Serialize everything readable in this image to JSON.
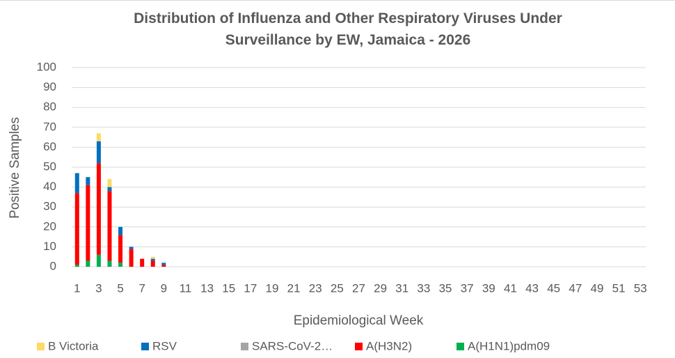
{
  "chart_data": {
    "type": "stacked_bar",
    "title": "Distribution of Influenza and Other Respiratory Viruses Under Surveillance by EW, Jamaica - 2026",
    "x_label": "Epidemiological Week",
    "y_label": "Positive Samples",
    "categories": [
      "1",
      null,
      "3",
      null,
      "5",
      null,
      "7",
      null,
      "9",
      null,
      "11",
      null,
      "13",
      null,
      "15",
      null,
      "17",
      null,
      "19",
      null,
      "21",
      null,
      "23",
      null,
      "25",
      null,
      "27",
      null,
      "29",
      null,
      "31",
      null,
      "33",
      null,
      "35",
      null,
      "37",
      null,
      "39",
      null,
      "41",
      null,
      "43",
      null,
      "45",
      null,
      "47",
      null,
      "49",
      null,
      "51",
      null,
      "53"
    ],
    "series": [
      {
        "name": "B Victoria",
        "color": "#ffd966",
        "values": [
          0,
          0,
          4,
          4,
          0,
          0,
          0,
          1,
          0,
          null,
          null,
          null,
          null,
          null,
          null,
          null,
          null,
          null,
          null,
          null,
          null,
          null,
          null,
          null,
          null,
          null,
          null,
          null,
          null,
          null,
          null,
          null,
          null,
          null,
          null,
          null,
          null,
          null,
          null,
          null,
          null,
          null,
          null,
          null,
          null,
          null,
          null,
          null,
          null,
          null,
          null,
          null,
          null
        ]
      },
      {
        "name": "RSV",
        "color": "#0070c0",
        "values": [
          10,
          4,
          11,
          2,
          4,
          1,
          0,
          1,
          1,
          null,
          null,
          null,
          null,
          null,
          null,
          null,
          null,
          null,
          null,
          null,
          null,
          null,
          null,
          null,
          null,
          null,
          null,
          null,
          null,
          null,
          null,
          null,
          null,
          null,
          null,
          null,
          null,
          null,
          null,
          null,
          null,
          null,
          null,
          null,
          null,
          null,
          null,
          null,
          null,
          null,
          null,
          null,
          null
        ]
      },
      {
        "name": "SARS-CoV-2…",
        "color": "#a5a5a5",
        "values": [
          0,
          0,
          0,
          0,
          0,
          0,
          0,
          0,
          0,
          null,
          null,
          null,
          null,
          null,
          null,
          null,
          null,
          null,
          null,
          null,
          null,
          null,
          null,
          null,
          null,
          null,
          null,
          null,
          null,
          null,
          null,
          null,
          null,
          null,
          null,
          null,
          null,
          null,
          null,
          null,
          null,
          null,
          null,
          null,
          null,
          null,
          null,
          null,
          null,
          null,
          null,
          null,
          null
        ]
      },
      {
        "name": "A(H3N2)",
        "color": "#ff0000",
        "values": [
          36,
          38,
          46,
          35,
          14,
          9,
          4,
          3,
          1,
          null,
          null,
          null,
          null,
          null,
          null,
          null,
          null,
          null,
          null,
          null,
          null,
          null,
          null,
          null,
          null,
          null,
          null,
          null,
          null,
          null,
          null,
          null,
          null,
          null,
          null,
          null,
          null,
          null,
          null,
          null,
          null,
          null,
          null,
          null,
          null,
          null,
          null,
          null,
          null,
          null,
          null,
          null,
          null
        ]
      },
      {
        "name": "A(H1N1)pdm09",
        "color": "#00b050",
        "values": [
          1,
          3,
          6,
          3,
          2,
          0,
          0,
          0,
          0,
          null,
          null,
          null,
          null,
          null,
          null,
          null,
          null,
          null,
          null,
          null,
          null,
          null,
          null,
          null,
          null,
          null,
          null,
          null,
          null,
          null,
          null,
          null,
          null,
          null,
          null,
          null,
          null,
          null,
          null,
          null,
          null,
          null,
          null,
          null,
          null,
          null,
          null,
          null,
          null,
          null,
          null,
          null,
          null
        ]
      }
    ],
    "ylim": [
      0,
      100
    ],
    "yticks": [
      0,
      10,
      20,
      30,
      40,
      50,
      60,
      70,
      80,
      90,
      100
    ],
    "grid": true,
    "legend": "bottom"
  }
}
